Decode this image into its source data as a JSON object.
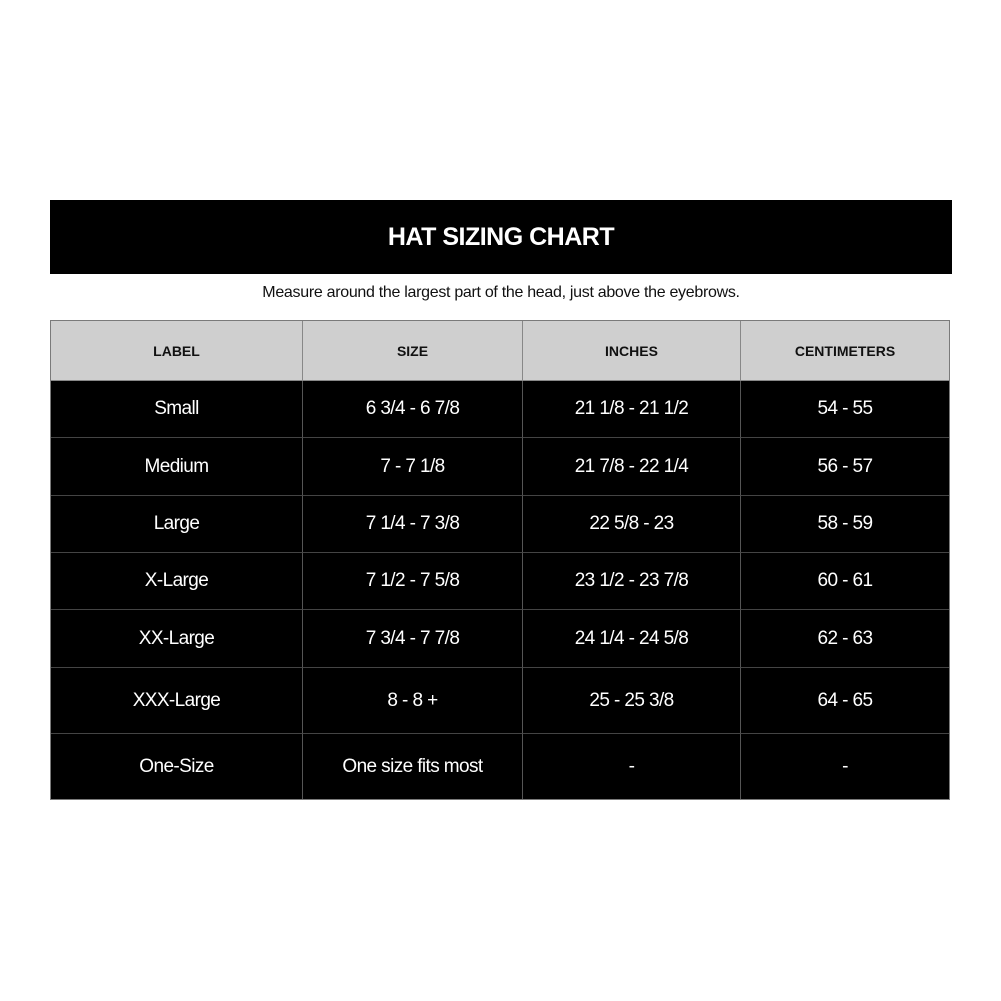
{
  "title": "HAT SIZING CHART",
  "subtitle": "Measure around the largest part of the head, just above the eyebrows.",
  "colors": {
    "title_bg": "#000000",
    "header_bg": "#cfcfcf",
    "body_bg": "#000000",
    "body_text": "#ffffff"
  },
  "table": {
    "headers": [
      "LABEL",
      "SIZE",
      "INCHES",
      "CENTIMETERS"
    ],
    "rows": [
      [
        "Small",
        "6 3/4 - 6 7/8",
        "21 1/8 - 21 1/2",
        "54 - 55"
      ],
      [
        "Medium",
        "7 - 7 1/8",
        "21 7/8 - 22 1/4",
        "56 - 57"
      ],
      [
        "Large",
        "7 1/4 - 7 3/8",
        "22 5/8 - 23",
        "58 - 59"
      ],
      [
        "X-Large",
        "7 1/2 - 7 5/8",
        "23 1/2 - 23 7/8",
        "60 - 61"
      ],
      [
        "XX-Large",
        "7 3/4 - 7 7/8",
        "24 1/4 - 24 5/8",
        "62 - 63"
      ],
      [
        "XXX-Large",
        "8 - 8 +",
        "25 - 25 3/8",
        "64 - 65"
      ],
      [
        "One-Size",
        "One size fits most",
        "-",
        "-"
      ]
    ]
  }
}
